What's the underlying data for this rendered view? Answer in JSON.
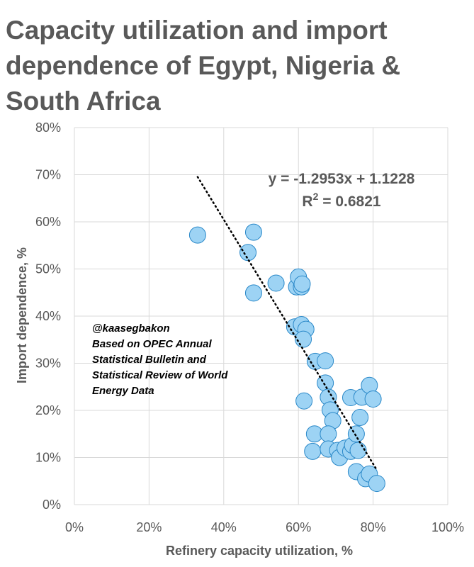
{
  "chart_data": {
    "type": "scatter",
    "title": "Capacity utilization and import\ndependence of Egypt, Nigeria &\nSouth Africa",
    "xlabel": "Refinery capacity utilization, %",
    "ylabel": "Import dependence, %",
    "xlim": [
      0,
      1
    ],
    "ylim": [
      0,
      0.8
    ],
    "x_ticks": [
      "0%",
      "20%",
      "40%",
      "60%",
      "80%",
      "100%"
    ],
    "y_ticks": [
      "0%",
      "10%",
      "20%",
      "30%",
      "40%",
      "50%",
      "60%",
      "70%",
      "80%"
    ],
    "grid": true,
    "point_color": "#9dd3f4",
    "point_edge_color": "#2a88c8",
    "trendline": {
      "type": "linear",
      "slope": -1.2953,
      "intercept": 1.1228,
      "x_range": [
        0.33,
        0.81
      ],
      "equation_label": "y = -1.2953x + 1.1228",
      "r2_label": "R",
      "r2_superscript": "2",
      "r2_value": " = 0.6821"
    },
    "annotation": [
      "@kaasegbakon",
      "Based on OPEC Annual",
      "Statistical Bulletin and",
      "Statistical Review of World",
      "Energy Data"
    ],
    "points": [
      {
        "x": 0.33,
        "y": 0.572
      },
      {
        "x": 0.465,
        "y": 0.535
      },
      {
        "x": 0.48,
        "y": 0.578
      },
      {
        "x": 0.48,
        "y": 0.449
      },
      {
        "x": 0.54,
        "y": 0.47
      },
      {
        "x": 0.595,
        "y": 0.462
      },
      {
        "x": 0.6,
        "y": 0.483
      },
      {
        "x": 0.608,
        "y": 0.462
      },
      {
        "x": 0.61,
        "y": 0.468
      },
      {
        "x": 0.59,
        "y": 0.377
      },
      {
        "x": 0.608,
        "y": 0.382
      },
      {
        "x": 0.62,
        "y": 0.372
      },
      {
        "x": 0.613,
        "y": 0.351
      },
      {
        "x": 0.615,
        "y": 0.22
      },
      {
        "x": 0.645,
        "y": 0.304
      },
      {
        "x": 0.672,
        "y": 0.305
      },
      {
        "x": 0.672,
        "y": 0.258
      },
      {
        "x": 0.68,
        "y": 0.228
      },
      {
        "x": 0.685,
        "y": 0.201
      },
      {
        "x": 0.692,
        "y": 0.178
      },
      {
        "x": 0.643,
        "y": 0.15
      },
      {
        "x": 0.638,
        "y": 0.113
      },
      {
        "x": 0.68,
        "y": 0.15
      },
      {
        "x": 0.68,
        "y": 0.118
      },
      {
        "x": 0.705,
        "y": 0.115
      },
      {
        "x": 0.71,
        "y": 0.1
      },
      {
        "x": 0.725,
        "y": 0.12
      },
      {
        "x": 0.74,
        "y": 0.113
      },
      {
        "x": 0.745,
        "y": 0.126
      },
      {
        "x": 0.76,
        "y": 0.115
      },
      {
        "x": 0.755,
        "y": 0.15
      },
      {
        "x": 0.74,
        "y": 0.227
      },
      {
        "x": 0.77,
        "y": 0.228
      },
      {
        "x": 0.79,
        "y": 0.253
      },
      {
        "x": 0.8,
        "y": 0.224
      },
      {
        "x": 0.765,
        "y": 0.185
      },
      {
        "x": 0.755,
        "y": 0.07
      },
      {
        "x": 0.78,
        "y": 0.055
      },
      {
        "x": 0.79,
        "y": 0.065
      },
      {
        "x": 0.81,
        "y": 0.045
      }
    ]
  }
}
